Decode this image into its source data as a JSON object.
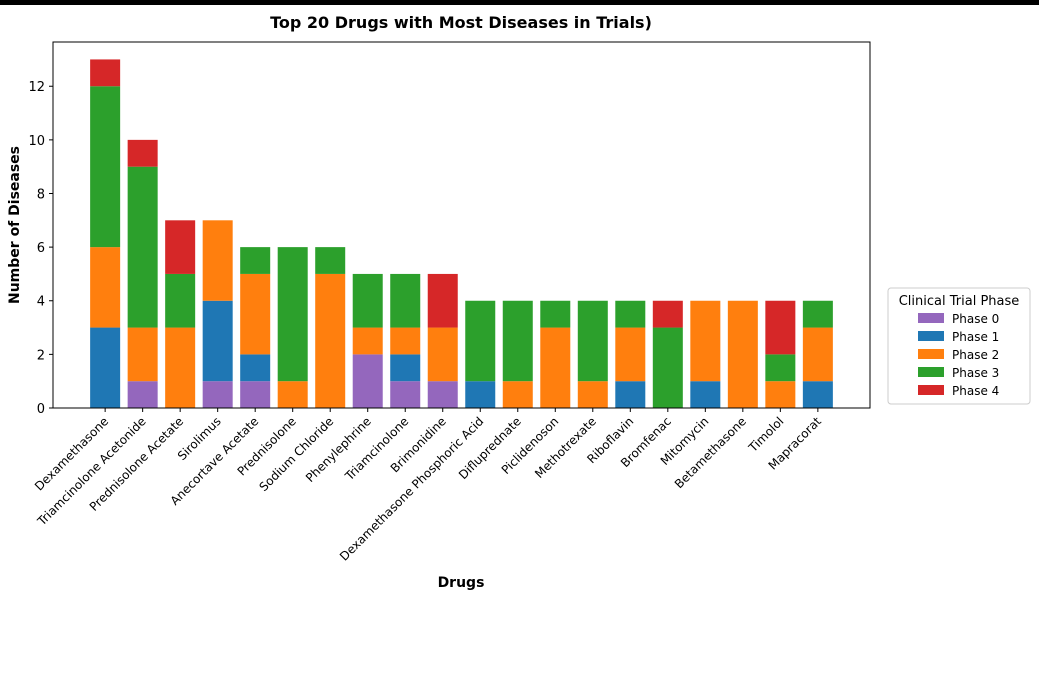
{
  "chart_data": {
    "type": "stacked_bar",
    "title": "Top 20 Drugs with Most Diseases in Trials)",
    "x_label": "Drugs",
    "y_label": "Number of Diseases",
    "categories": [
      "Dexamethasone",
      "Triamcinolone Acetonide",
      "Prednisolone Acetate",
      "Sirolimus",
      "Anecortave Acetate",
      "Prednisolone",
      "Sodium Chloride",
      "Phenylephrine",
      "Triamcinolone",
      "Brimonidine",
      "Dexamethasone Phosphoric Acid",
      "Difluprednate",
      "Piclidenoson",
      "Methotrexate",
      "Riboflavin",
      "Bromfenac",
      "Mitomycin",
      "Betamethasone",
      "Timolol",
      "Mapracorat"
    ],
    "series": [
      {
        "name": "Phase 0",
        "color": "#9467bd",
        "values": [
          0,
          1,
          0,
          1,
          1,
          0,
          0,
          2,
          1,
          1,
          0,
          0,
          0,
          0,
          0,
          0,
          0,
          0,
          0,
          0
        ]
      },
      {
        "name": "Phase 1",
        "color": "#1f77b4",
        "values": [
          3,
          0,
          0,
          3,
          1,
          0,
          0,
          0,
          1,
          0,
          1,
          0,
          0,
          0,
          1,
          0,
          1,
          0,
          0,
          1
        ]
      },
      {
        "name": "Phase 2",
        "color": "#ff7f0e",
        "values": [
          3,
          2,
          3,
          3,
          3,
          1,
          5,
          1,
          1,
          2,
          0,
          1,
          3,
          1,
          2,
          0,
          3,
          4,
          1,
          2
        ]
      },
      {
        "name": "Phase 3",
        "color": "#2ca02c",
        "values": [
          6,
          6,
          2,
          0,
          1,
          5,
          1,
          2,
          2,
          0,
          3,
          3,
          1,
          3,
          1,
          3,
          0,
          0,
          1,
          1
        ]
      },
      {
        "name": "Phase 4",
        "color": "#d62728",
        "values": [
          1,
          1,
          2,
          0,
          0,
          0,
          0,
          0,
          0,
          2,
          0,
          0,
          0,
          0,
          0,
          1,
          0,
          0,
          2,
          0
        ]
      }
    ],
    "legend_title": "Clinical Trial Phase",
    "legend_position": "right",
    "ylim": [
      0,
      13.65
    ],
    "yticks": [
      0,
      2,
      4,
      6,
      8,
      10,
      12
    ]
  }
}
